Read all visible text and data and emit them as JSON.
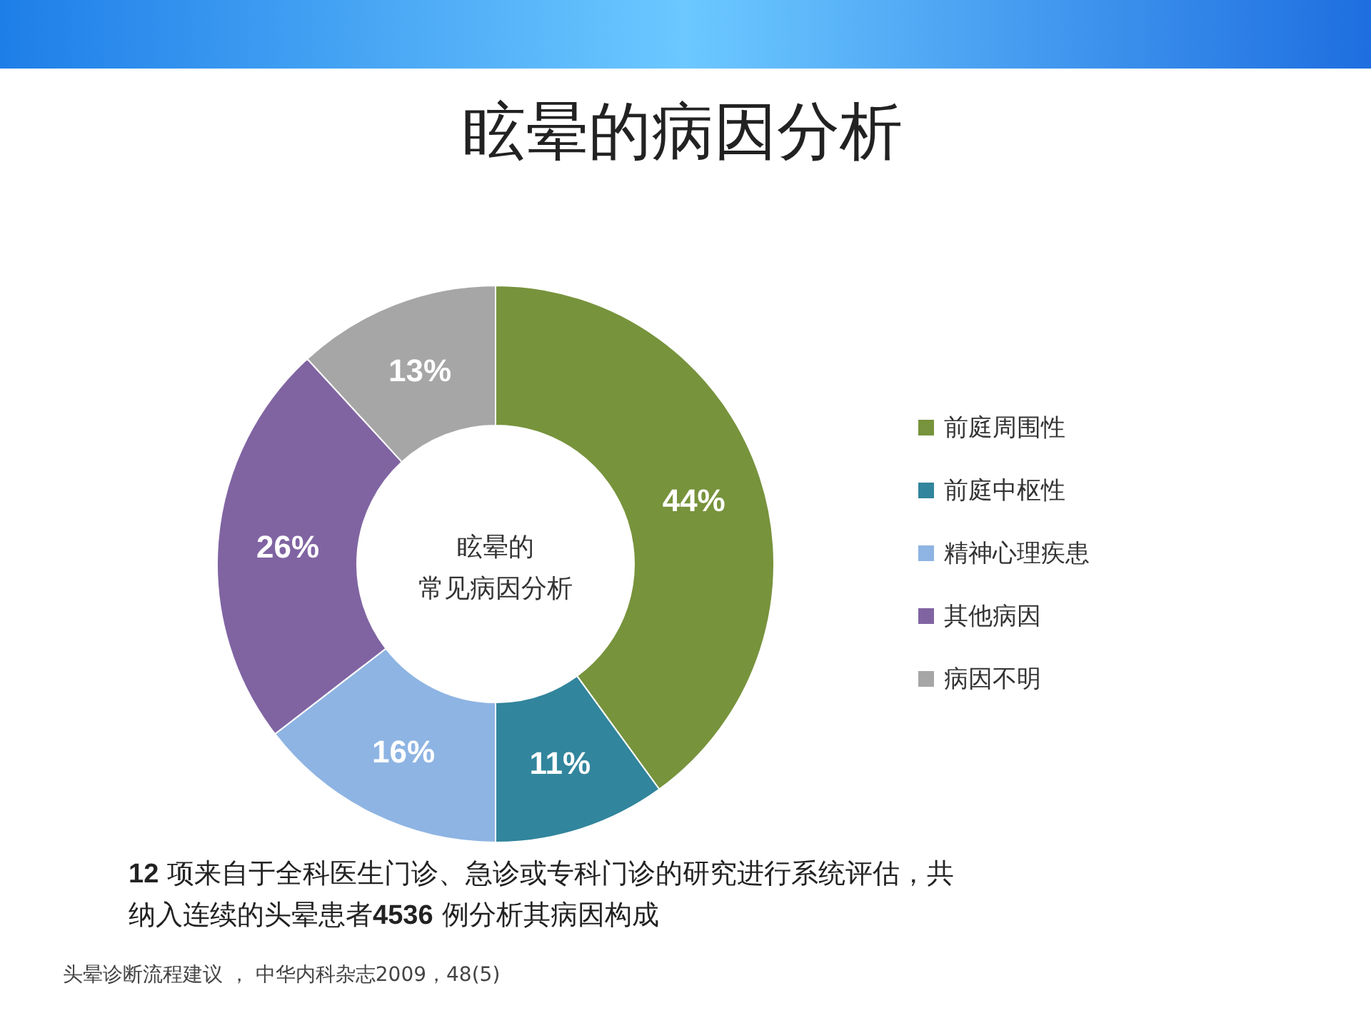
{
  "chart_data": {
    "type": "donut",
    "title": "眩晕的病因分析",
    "categories": [
      "前庭周围性",
      "前庭中枢性",
      "精神心理疾患",
      "其他病因",
      "病因不明"
    ],
    "values": [
      44,
      11,
      16,
      26,
      13
    ],
    "colors": [
      "#77933c",
      "#31859c",
      "#8eb4e3",
      "#8064a2",
      "#a6a6a6"
    ],
    "value_labels": [
      "44%",
      "11%",
      "16%",
      "26%",
      "13%"
    ],
    "legend": "right",
    "annotations": [
      "眩晕的",
      "常见病因分析",
      "**12** 项来自于全科医生门诊、急诊或专科门诊的研究进行系统评估，共",
      "纳入连续的头晕患者**4536** 例分析其病因构成",
      "头晕诊断流程建议 ， 中华内科杂志2009，48(5)"
    ]
  }
}
